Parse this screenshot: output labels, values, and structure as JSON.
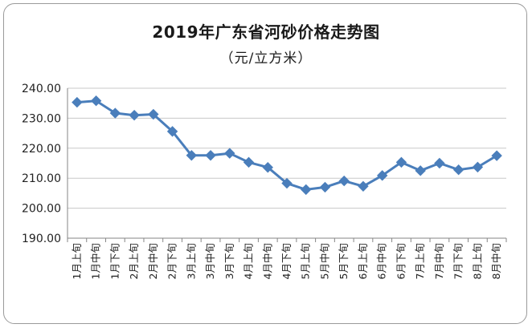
{
  "chart_data": {
    "type": "line",
    "title": "2019年广东省河砂价格走势图",
    "subtitle": "（元/立方米）",
    "categories": [
      "1月上旬",
      "1月中旬",
      "1月下旬",
      "2月上旬",
      "2月中旬",
      "2月下旬",
      "3月上旬",
      "3月中旬",
      "3月下旬",
      "4月上旬",
      "4月中旬",
      "4月下旬",
      "5月上旬",
      "5月中旬",
      "5月下旬",
      "6月上旬",
      "6月中旬",
      "6月下旬",
      "7月上旬",
      "7月中旬",
      "7月下旬",
      "8月上旬",
      "8月中旬"
    ],
    "values": [
      235.3,
      235.8,
      231.7,
      231.0,
      231.3,
      225.6,
      217.6,
      217.6,
      218.3,
      215.3,
      213.6,
      208.3,
      206.2,
      207.0,
      209.1,
      207.3,
      210.9,
      215.3,
      212.5,
      215.0,
      212.8,
      213.7,
      217.5
    ],
    "yticks": [
      "190.00",
      "200.00",
      "210.00",
      "220.00",
      "230.00",
      "240.00"
    ],
    "ylim": [
      190,
      240
    ],
    "grid": true,
    "legend": "none",
    "colors": {
      "line": "#4a7ebb",
      "marker": "#4a7ebb",
      "axis": "#868686"
    }
  }
}
